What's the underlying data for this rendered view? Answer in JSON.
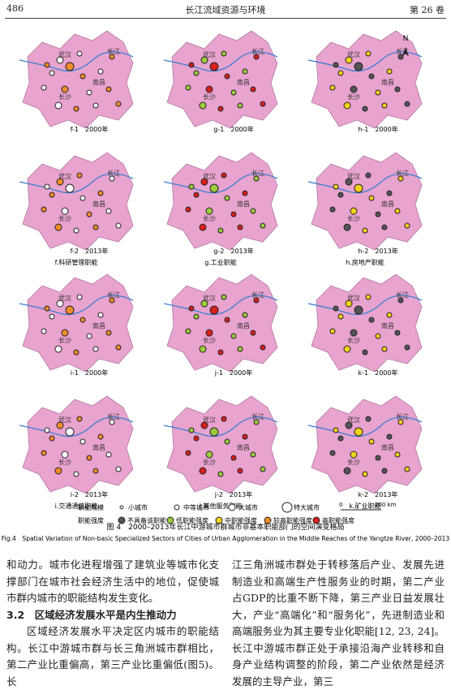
{
  "header": {
    "page": "486",
    "journal": "长江流域资源与环境",
    "volume": "第 26 卷"
  },
  "figure": {
    "north": "N",
    "place_names": [
      "武汉",
      "长江",
      "南昌",
      "长沙"
    ],
    "panels": [
      "f-1　2000年",
      "g-1　2000年",
      "h-1　2000年",
      "f-2　2013年",
      "g-2　2013年",
      "h-2　2013年",
      "i-1　2000年",
      "j-1　2000年",
      "k-1　2000年",
      "i-2　2013年",
      "j-2　2013年",
      "k-2　2013年"
    ],
    "group_captions": [
      "f.科研管理职能",
      "g.工业职能",
      "h.房地产职能",
      "i.交通通信职能",
      "j.其他服务职能",
      "k.矿业职能"
    ],
    "legend": {
      "size_title": "职能规模",
      "sizes": [
        "小城市",
        "中等城市",
        "大城市",
        "特大城市"
      ],
      "strength_title": "职能强度",
      "strengths": [
        "不具备该职能",
        "低职能强度",
        "中职能强度",
        "较高职能强度",
        "高职能强度"
      ],
      "scale": [
        "0",
        "200 km"
      ]
    },
    "caption_cn": "图 4　2000–2013年长江中游城市群城市非基本职能部门的空间演变格局",
    "caption_en": "Fig.4　Spatial Variation of Non-basic Specialized Sectors of Cities of Urban Agglomeration in the Middle Reaches of the Yangtze River, 2000–2013"
  },
  "body": {
    "left": [
      "和动力。城市化进程增强了建筑业等城市化支撑部门在城市社会经济生活中的地位，促使城市群内城市的职能结构发生变化。",
      "3.2　区域经济发展水平是内生推动力",
      "区域经济发展水平决定区内城市的职能结构。长江中游城市群与长三角洲城市群相比，第二产业比重偏高，第三产业比重偏低(图5)。长"
    ],
    "right": [
      "江三角洲城市群处于转移落后产业、发展先进制造业和高端生产性服务业的时期，第二产业占GDP的比重不断下降，第三产业日益发展壮大，产业“高端化”和“服务化”，先进制造业和高端服务业为其主要专业化职能[12, 23, 24]。长江中游城市群正处于承接沿海产业转移和自身产业结构调整的阶段，第二产业依然是经济发展的主导产业，第三"
    ]
  }
}
